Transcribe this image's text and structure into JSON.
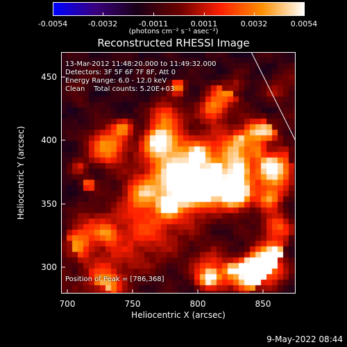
{
  "colorbar": {
    "ticks": [
      "-0.0054",
      "-0.0032",
      "-0.0011",
      "0.0011",
      "0.0032",
      "0.0054"
    ],
    "units_label": "(photons cm⁻² s⁻¹ asec⁻²)",
    "colors": [
      "#0000ff",
      "#3a0080",
      "#1a0018",
      "#6a0000",
      "#ff2000",
      "#ff9000",
      "#ffffff"
    ]
  },
  "title": "Reconstructed RHESSI Image",
  "annotations": {
    "time_range": "13-Mar-2012 11:48:20.000 to 11:49:32.000",
    "detectors": "Detectors: 3F 5F 6F 7F 8F, Att 0",
    "energy_range": "Energy Range: 6.0 - 12.0 keV",
    "method_counts": "Clean    Total counts: 5.20E+03",
    "peak_position": "Position of Peak = [786,368]"
  },
  "axes": {
    "xlabel": "Heliocentric X (arcsec)",
    "ylabel": "Heliocentric Y (arcsec)",
    "xticks": [
      "700",
      "750",
      "800",
      "850"
    ],
    "yticks": [
      "450",
      "400",
      "350",
      "300"
    ]
  },
  "footer": {
    "date": "9-May-2022 08:44"
  }
}
